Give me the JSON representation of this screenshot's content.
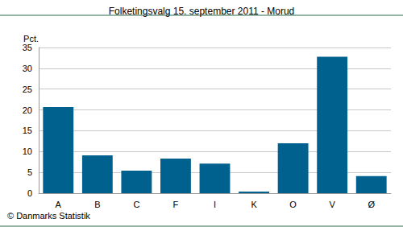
{
  "chart_data": {
    "type": "bar",
    "title": "Folketingsvalg 15. september 2011 - Morud",
    "y_label": "Pct.",
    "annotations": [
      "© Danmarks Statistik"
    ],
    "categories": [
      "A",
      "B",
      "C",
      "F",
      "I",
      "K",
      "O",
      "V",
      "Ø"
    ],
    "values": [
      20.7,
      9.1,
      5.4,
      8.3,
      7.1,
      0.4,
      12.0,
      32.8,
      4.1
    ],
    "color": "#00618f",
    "ylim": [
      0,
      35
    ],
    "yticks": [
      0,
      5,
      10,
      15,
      20,
      25,
      30,
      35
    ],
    "grid": true
  }
}
